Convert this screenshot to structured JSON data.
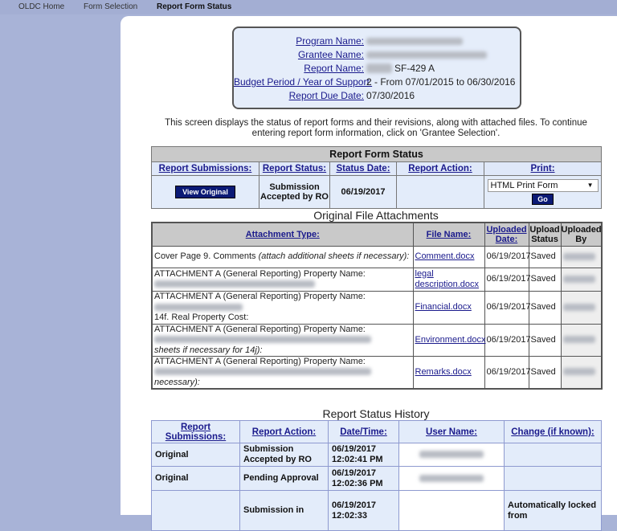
{
  "nav": {
    "items": [
      "OLDC Home",
      "Form Selection",
      "Report Form Status"
    ]
  },
  "info": {
    "program_label": "Program Name:",
    "grantee_label": "Grantee Name:",
    "report_label": "Report Name:",
    "report_value": "SF-429 A",
    "budget_label": "Budget Period / Year of Support:",
    "budget_value": "2 - From 07/01/2015 to 06/30/2016",
    "due_label": "Report Due Date:",
    "due_value": "07/30/2016"
  },
  "description": "This screen displays the status of report forms and their revisions, along with attached files. To continue entering report form information, click on 'Grantee Selection'.",
  "status_table": {
    "title": "Report Form Status",
    "headers": [
      "Report Submissions:",
      "Report Status:",
      "Status Date:",
      "Report Action:",
      "Print:"
    ],
    "view_button": "View Original",
    "status": "Submission Accepted by RO",
    "date": "06/19/2017",
    "print_option": "HTML Print Form",
    "go_button": "Go"
  },
  "attachments": {
    "title": "Original File Attachments",
    "headers": [
      "Attachment Type:",
      "File Name:",
      "Uploaded Date:",
      "Upload Status",
      "Uploaded By"
    ],
    "rows": [
      {
        "type": "Cover Page 9. Comments",
        "type_italic": "(attach additional sheets if necessary):",
        "extra": "",
        "file": "Comment.docx",
        "date": "06/19/2017",
        "status": "Saved"
      },
      {
        "type": "ATTACHMENT A (General Reporting) Property Name:",
        "type_italic": "",
        "extra": "",
        "file": "legal description.docx",
        "date": "06/19/2017",
        "status": "Saved"
      },
      {
        "type": "ATTACHMENT A (General Reporting) Property Name:",
        "type_italic": "",
        "extra": "14f. Real Property Cost:",
        "file": "Financial.docx",
        "date": "06/19/2017",
        "status": "Saved"
      },
      {
        "type": "ATTACHMENT A (General Reporting) Property Name:",
        "type_italic": "sheets if necessary for 14j):",
        "extra": "",
        "file": "Environment.docx",
        "date": "06/19/2017",
        "status": "Saved"
      },
      {
        "type": "ATTACHMENT A (General Reporting) Property Name:",
        "type_italic": "necessary):",
        "extra": "",
        "file": "Remarks.docx",
        "date": "06/19/2017",
        "status": "Saved"
      }
    ]
  },
  "history": {
    "title": "Report Status History",
    "headers": [
      "Report Submissions:",
      "Report Action:",
      "Date/Time:",
      "User Name:",
      "Change (if known):"
    ],
    "rows": [
      {
        "submission": "Original",
        "action": "Submission Accepted by RO",
        "datetime": "06/19/2017 12:02:41 PM",
        "change": ""
      },
      {
        "submission": "Original",
        "action": "Pending Approval",
        "datetime": "06/19/2017 12:02:36 PM",
        "change": ""
      },
      {
        "submission": "",
        "action": "Submission in",
        "datetime": "06/19/2017 12:02:33",
        "change": "Automatically locked from"
      }
    ]
  }
}
